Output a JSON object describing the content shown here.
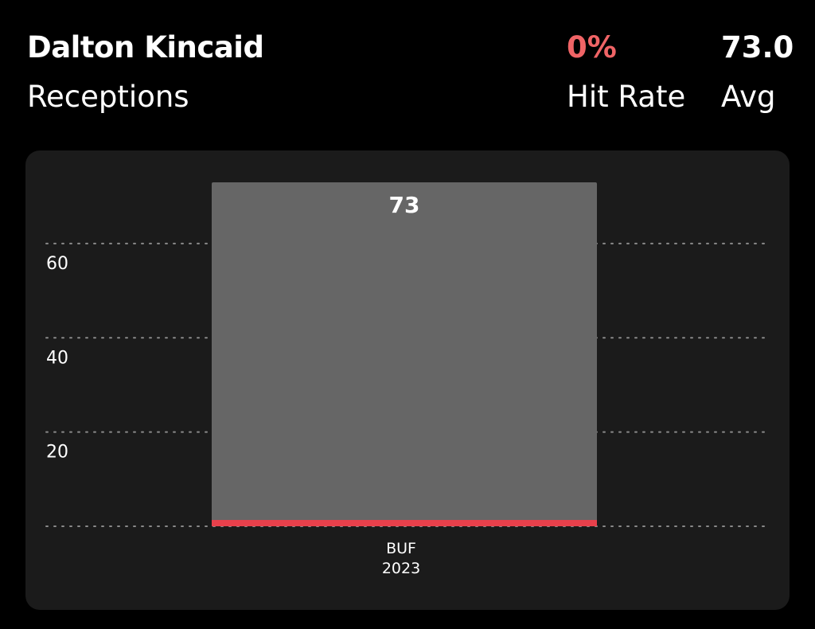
{
  "header": {
    "player_name": "Dalton Kincaid",
    "stat_label": "Receptions",
    "hit_rate_value": "0%",
    "hit_rate_label": "Hit Rate",
    "avg_value": "73.0",
    "avg_label": "Avg"
  },
  "colors": {
    "background": "#000000",
    "panel": "#1b1b1b",
    "bar": "#666666",
    "line_marker": "#e8404b",
    "hit_rate": "#f06466",
    "gridline": "#8a8a8a",
    "text": "#ffffff"
  },
  "chart_data": {
    "type": "bar",
    "categories": [
      {
        "team": "BUF",
        "year": "2023"
      }
    ],
    "values": [
      73
    ],
    "data_labels": [
      "73"
    ],
    "y_ticks": [
      20,
      40,
      60
    ],
    "y_tick_labels": [
      "20",
      "40",
      "60"
    ],
    "ylim": [
      0,
      73
    ],
    "line_value": 0.5,
    "grid": true,
    "xlabel": "",
    "ylabel": ""
  }
}
